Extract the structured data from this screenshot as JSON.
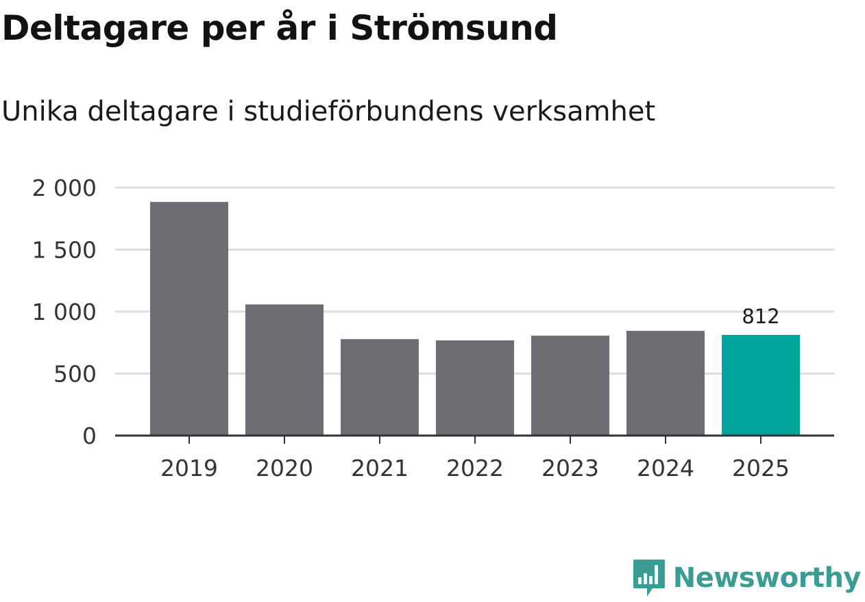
{
  "header": {
    "title": "Deltagare per år i Strömsund",
    "subtitle": "Unika deltagare i studieförbundens verksamhet"
  },
  "chart_data": {
    "type": "bar",
    "title": "Deltagare per år i Strömsund",
    "subtitle": "Unika deltagare i studieförbundens verksamhet",
    "xlabel": "",
    "ylabel": "",
    "categories": [
      "2019",
      "2020",
      "2021",
      "2022",
      "2023",
      "2024",
      "2025"
    ],
    "values": [
      1885,
      1058,
      778,
      768,
      806,
      845,
      812
    ],
    "ylim": [
      0,
      2000
    ],
    "yticks": [
      0,
      500,
      1000,
      1500,
      2000
    ],
    "ytick_labels": [
      "0",
      "500",
      "1 000",
      "1 500",
      "2 000"
    ],
    "highlight_index": 6,
    "data_labels": [
      {
        "index": 6,
        "text": "812"
      }
    ],
    "grid": true,
    "colors": {
      "bar": "#6e6d73",
      "highlight": "#00a49b",
      "grid": "#dddddd",
      "axis": "#333333"
    }
  },
  "brand": {
    "name": "Newsworthy",
    "icon": "newsworthy-logo-icon",
    "color": "#3a9c93"
  }
}
